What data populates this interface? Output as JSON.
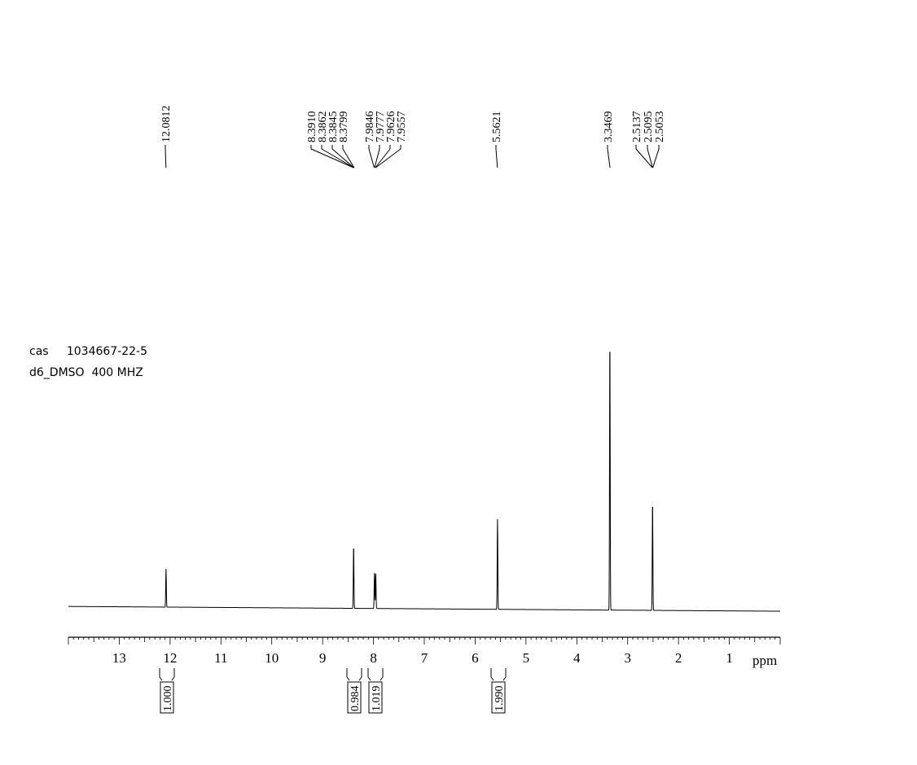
{
  "chart_data": {
    "type": "line",
    "xlabel": "ppm",
    "xlim": [
      14.0,
      0.0
    ],
    "ticks": [
      "13",
      "12",
      "11",
      "10",
      "9",
      "8",
      "7",
      "6",
      "5",
      "4",
      "3",
      "2",
      "1"
    ],
    "info": {
      "cas_label": "cas",
      "cas_number": "1034667-22-5",
      "solvent_freq": "d6_DMSO  400 MHZ"
    },
    "peak_labels": [
      {
        "text": "12.0812",
        "ppm": 12.0812
      },
      {
        "text": "8.3910",
        "ppm": 8.391
      },
      {
        "text": "8.3862",
        "ppm": 8.3862
      },
      {
        "text": "8.3845",
        "ppm": 8.3845
      },
      {
        "text": "8.3799",
        "ppm": 8.3799
      },
      {
        "text": "7.9846",
        "ppm": 7.9846
      },
      {
        "text": "7.9777",
        "ppm": 7.9777
      },
      {
        "text": "7.9626",
        "ppm": 7.9626
      },
      {
        "text": "7.9557",
        "ppm": 7.9557
      },
      {
        "text": "5.5621",
        "ppm": 5.5621
      },
      {
        "text": "3.3469",
        "ppm": 3.3469
      },
      {
        "text": "2.5137",
        "ppm": 2.5137
      },
      {
        "text": "2.5095",
        "ppm": 2.5095
      },
      {
        "text": "2.5053",
        "ppm": 2.5053
      }
    ],
    "peaks": [
      {
        "ppm": 12.08,
        "height": 0.14
      },
      {
        "ppm": 8.39,
        "height": 0.23
      },
      {
        "ppm": 7.98,
        "height": 0.13
      },
      {
        "ppm": 7.955,
        "height": 0.13
      },
      {
        "ppm": 5.56,
        "height": 0.33
      },
      {
        "ppm": 3.35,
        "height": 1.0
      },
      {
        "ppm": 2.51,
        "height": 0.4
      }
    ],
    "integrals": [
      {
        "text": "1.000",
        "ppm": 12.08
      },
      {
        "text": "0.984",
        "ppm": 8.39
      },
      {
        "text": "1.019",
        "ppm": 7.97
      },
      {
        "text": "1.990",
        "ppm": 5.56
      }
    ]
  }
}
